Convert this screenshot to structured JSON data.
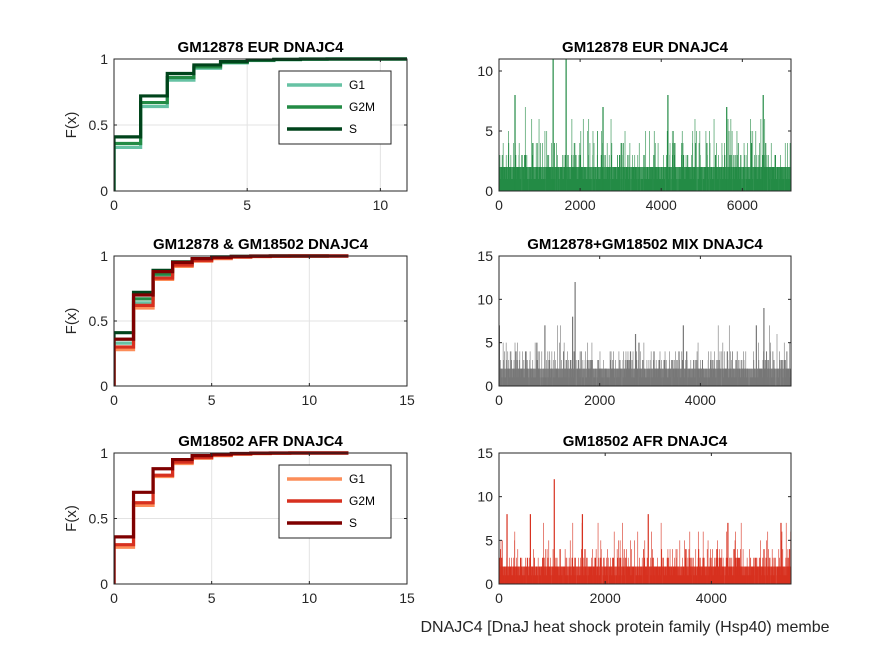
{
  "figure": {
    "bottom_xlabel": "DNAJC4 [DnaJ heat shock protein family (Hsp40) membe"
  },
  "chart_data": [
    {
      "type": "line",
      "subtype": "ecdf-stairs",
      "title": "GM12878 EUR DNAJC4",
      "ylabel": "F(x)",
      "xlim": [
        0,
        11
      ],
      "ylim": [
        0,
        1
      ],
      "xticks": [
        "0",
        "5",
        "10"
      ],
      "yticks": [
        "0",
        "0.5",
        "1"
      ],
      "grid": true,
      "legend": {
        "show": true,
        "location": "top-right"
      },
      "series": [
        {
          "name": "G1",
          "color": "#66c2a4",
          "x": [
            0,
            1,
            2,
            3,
            4,
            5,
            6,
            7,
            8,
            11
          ],
          "y": [
            0.33,
            0.64,
            0.84,
            0.93,
            0.97,
            0.988,
            0.995,
            0.998,
            1,
            1
          ]
        },
        {
          "name": "G2M",
          "color": "#238b45",
          "x": [
            0,
            1,
            2,
            3,
            4,
            5,
            6,
            7,
            8,
            11
          ],
          "y": [
            0.36,
            0.67,
            0.86,
            0.94,
            0.975,
            0.99,
            0.996,
            0.999,
            1,
            1
          ]
        },
        {
          "name": "S",
          "color": "#00441b",
          "x": [
            0,
            1,
            2,
            3,
            4,
            5,
            6,
            7,
            8,
            11
          ],
          "y": [
            0.41,
            0.72,
            0.89,
            0.955,
            0.98,
            0.993,
            0.997,
            1,
            1,
            1
          ]
        }
      ]
    },
    {
      "type": "bar",
      "subtype": "per-cell-counts",
      "title": "GM12878 EUR DNAJC4",
      "xlim": [
        0,
        7200
      ],
      "ylim": [
        0,
        11
      ],
      "xticks": [
        "0",
        "2000",
        "4000",
        "6000"
      ],
      "yticks": [
        "0",
        "5",
        "10"
      ],
      "grid": false,
      "color": "#238b45",
      "n_cells": 7200,
      "peaks": [
        {
          "x": 1320,
          "value": 11
        },
        {
          "x": 1640,
          "value": 11
        },
        {
          "x": 380,
          "value": 8
        },
        {
          "x": 4150,
          "value": 8
        },
        {
          "x": 6500,
          "value": 8
        },
        {
          "x": 2550,
          "value": 7
        },
        {
          "x": 5600,
          "value": 7
        }
      ],
      "level_fractions": [
        0.37,
        0.31,
        0.18,
        0.08,
        0.035,
        0.015,
        0.007,
        0.003
      ]
    },
    {
      "type": "line",
      "subtype": "ecdf-stairs",
      "title": "GM12878 & GM18502 DNAJC4",
      "ylabel": "F(x)",
      "xlim": [
        0,
        15
      ],
      "ylim": [
        0,
        1
      ],
      "xticks": [
        "0",
        "5",
        "10",
        "15"
      ],
      "yticks": [
        "0",
        "0.5",
        "1"
      ],
      "grid": true,
      "legend": {
        "show": false
      },
      "series": [
        {
          "color": "#66c2a4",
          "x": [
            0,
            1,
            2,
            3,
            4,
            5,
            6,
            7,
            8,
            11
          ],
          "y": [
            0.33,
            0.64,
            0.84,
            0.93,
            0.97,
            0.988,
            0.995,
            0.998,
            1,
            1
          ]
        },
        {
          "color": "#238b45",
          "x": [
            0,
            1,
            2,
            3,
            4,
            5,
            6,
            7,
            8,
            11
          ],
          "y": [
            0.36,
            0.67,
            0.86,
            0.94,
            0.975,
            0.99,
            0.996,
            0.999,
            1,
            1
          ]
        },
        {
          "color": "#00441b",
          "x": [
            0,
            1,
            2,
            3,
            4,
            5,
            6,
            7,
            8,
            11
          ],
          "y": [
            0.41,
            0.72,
            0.89,
            0.955,
            0.98,
            0.993,
            0.997,
            1,
            1,
            1
          ]
        },
        {
          "color": "#fc8d59",
          "x": [
            0,
            1,
            2,
            3,
            4,
            5,
            6,
            7,
            8,
            9,
            12
          ],
          "y": [
            0.28,
            0.6,
            0.82,
            0.92,
            0.96,
            0.98,
            0.99,
            0.995,
            0.998,
            1,
            1
          ]
        },
        {
          "color": "#d7301f",
          "x": [
            0,
            1,
            2,
            3,
            4,
            5,
            6,
            7,
            8,
            9,
            12
          ],
          "y": [
            0.3,
            0.62,
            0.83,
            0.93,
            0.965,
            0.985,
            0.993,
            0.997,
            0.999,
            1,
            1
          ]
        },
        {
          "color": "#7f0000",
          "x": [
            0,
            1,
            2,
            3,
            4,
            5,
            6,
            7,
            8,
            12
          ],
          "y": [
            0.36,
            0.7,
            0.88,
            0.95,
            0.98,
            0.99,
            0.996,
            0.999,
            1,
            1
          ]
        }
      ]
    },
    {
      "type": "bar",
      "subtype": "per-cell-counts",
      "title": "GM12878+GM18502 MIX DNAJC4",
      "xlim": [
        0,
        5800
      ],
      "ylim": [
        0,
        15
      ],
      "xticks": [
        "0",
        "2000",
        "4000"
      ],
      "yticks": [
        "0",
        "5",
        "10",
        "15"
      ],
      "grid": false,
      "color": "#777777",
      "n_cells": 5800,
      "peaks": [
        {
          "x": 1500,
          "value": 12
        },
        {
          "x": 5250,
          "value": 9
        },
        {
          "x": 1450,
          "value": 8
        },
        {
          "x": 3650,
          "value": 7
        },
        {
          "x": 5100,
          "value": 7
        },
        {
          "x": 900,
          "value": 7
        },
        {
          "x": 2700,
          "value": 6
        }
      ],
      "level_fractions": [
        0.34,
        0.3,
        0.19,
        0.1,
        0.045,
        0.016,
        0.006,
        0.003
      ]
    },
    {
      "type": "line",
      "subtype": "ecdf-stairs",
      "title": "GM18502 AFR DNAJC4",
      "ylabel": "F(x)",
      "xlim": [
        0,
        15
      ],
      "ylim": [
        0,
        1
      ],
      "xticks": [
        "0",
        "5",
        "10",
        "15"
      ],
      "yticks": [
        "0",
        "0.5",
        "1"
      ],
      "grid": true,
      "legend": {
        "show": true,
        "location": "top-right"
      },
      "series": [
        {
          "name": "G1",
          "color": "#fc8d59",
          "x": [
            0,
            1,
            2,
            3,
            4,
            5,
            6,
            7,
            8,
            9,
            12
          ],
          "y": [
            0.28,
            0.6,
            0.82,
            0.92,
            0.96,
            0.98,
            0.99,
            0.995,
            0.998,
            1,
            1
          ]
        },
        {
          "name": "G2M",
          "color": "#d7301f",
          "x": [
            0,
            1,
            2,
            3,
            4,
            5,
            6,
            7,
            8,
            9,
            12
          ],
          "y": [
            0.3,
            0.62,
            0.83,
            0.93,
            0.965,
            0.985,
            0.993,
            0.997,
            0.999,
            1,
            1
          ]
        },
        {
          "name": "S",
          "color": "#7f0000",
          "x": [
            0,
            1,
            2,
            3,
            4,
            5,
            6,
            7,
            8,
            12
          ],
          "y": [
            0.36,
            0.7,
            0.88,
            0.95,
            0.98,
            0.99,
            0.996,
            0.999,
            1,
            1
          ]
        }
      ]
    },
    {
      "type": "bar",
      "subtype": "per-cell-counts",
      "title": "GM18502 AFR DNAJC4",
      "xlim": [
        0,
        5500
      ],
      "ylim": [
        0,
        15
      ],
      "xticks": [
        "0",
        "2000",
        "4000"
      ],
      "yticks": [
        "0",
        "5",
        "10",
        "15"
      ],
      "grid": false,
      "color": "#d7301f",
      "n_cells": 5500,
      "peaks": [
        {
          "x": 1030,
          "value": 12
        },
        {
          "x": 580,
          "value": 8
        },
        {
          "x": 1560,
          "value": 8
        },
        {
          "x": 2800,
          "value": 8
        },
        {
          "x": 140,
          "value": 8
        },
        {
          "x": 4300,
          "value": 7
        },
        {
          "x": 5300,
          "value": 7
        }
      ],
      "level_fractions": [
        0.28,
        0.32,
        0.22,
        0.11,
        0.045,
        0.016,
        0.006,
        0.003
      ]
    }
  ]
}
